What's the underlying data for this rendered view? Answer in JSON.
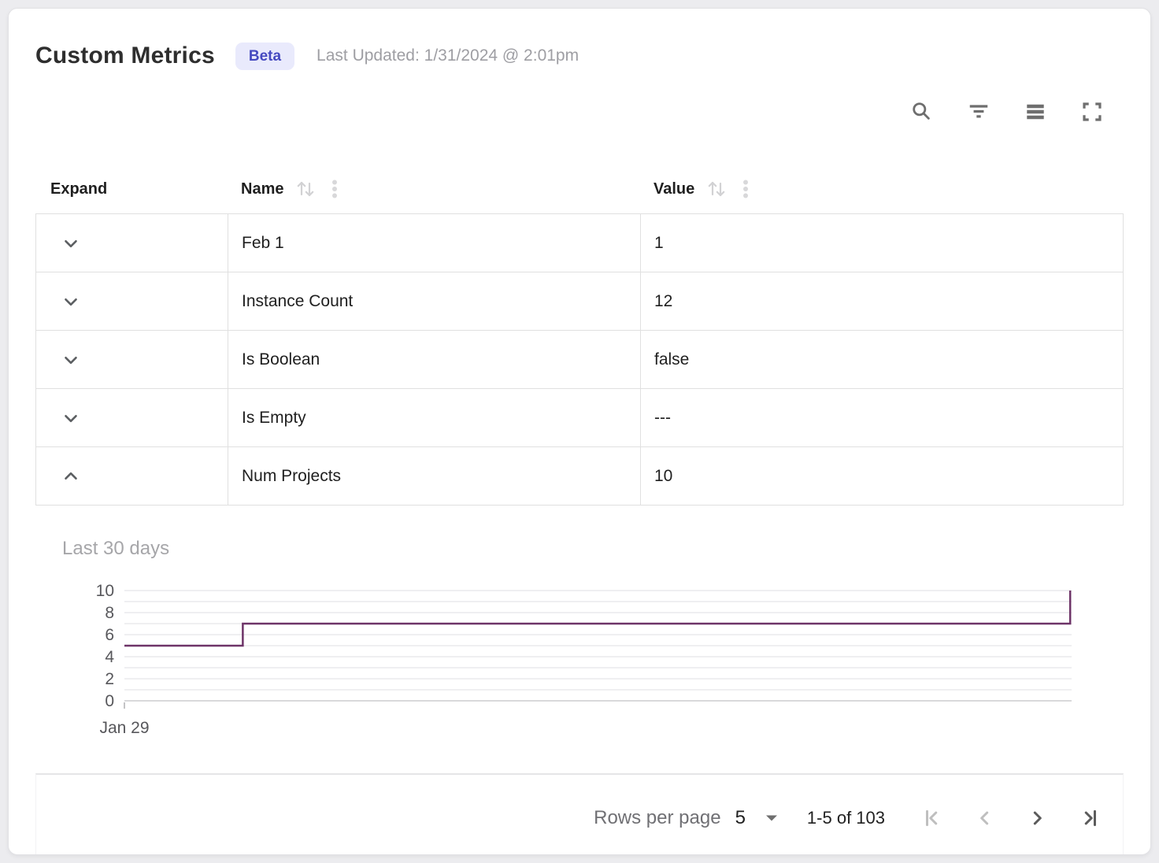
{
  "header": {
    "title": "Custom Metrics",
    "beta_badge": "Beta",
    "last_updated": "Last Updated: 1/31/2024 @ 2:01pm"
  },
  "toolbar": {
    "icon_buttons": [
      "search",
      "filter",
      "density",
      "fullscreen"
    ]
  },
  "table": {
    "columns": [
      {
        "label": "Expand",
        "sortable": false
      },
      {
        "label": "Name",
        "sortable": true
      },
      {
        "label": "Value",
        "sortable": true
      }
    ],
    "rows": [
      {
        "name": "Feb 1",
        "value": "1",
        "expanded": false
      },
      {
        "name": "Instance Count",
        "value": "12",
        "expanded": false
      },
      {
        "name": "Is Boolean",
        "value": "false",
        "expanded": false
      },
      {
        "name": "Is Empty",
        "value": "---",
        "expanded": false
      },
      {
        "name": "Num Projects",
        "value": "10",
        "expanded": true
      }
    ]
  },
  "chart_data": {
    "type": "line",
    "subtype": "step",
    "title": "Last 30 days",
    "series": [
      {
        "name": "Num Projects",
        "points": [
          {
            "x_frac": 0.0,
            "y": 5
          },
          {
            "x_frac": 0.125,
            "y": 5
          },
          {
            "x_frac": 0.125,
            "y": 7
          },
          {
            "x_frac": 0.9985,
            "y": 7
          },
          {
            "x_frac": 0.9985,
            "y": 10
          }
        ]
      }
    ],
    "xlabel_first_tick": "Jan 29",
    "ylim": [
      0,
      10
    ],
    "y_ticks": [
      0,
      2,
      4,
      6,
      8,
      10
    ],
    "grid_step": 1,
    "grid": true,
    "legend": false,
    "line_color": "#6e3468"
  },
  "pagination": {
    "rows_per_page_label": "Rows per page",
    "rows_per_page_value": "5",
    "range_label": "1-5 of 103",
    "nav_buttons": [
      {
        "name": "first-page",
        "enabled": false
      },
      {
        "name": "previous-page",
        "enabled": false
      },
      {
        "name": "next-page",
        "enabled": true
      },
      {
        "name": "last-page",
        "enabled": true
      }
    ]
  },
  "colors": {
    "badge_bg": "#e9eafc",
    "badge_text": "#4549c0",
    "chart_line": "#6e3468",
    "row_border": "#e0e0e0",
    "icon_gray": "#6e6e6e",
    "disabled_icon_gray": "#bfbfbf"
  }
}
